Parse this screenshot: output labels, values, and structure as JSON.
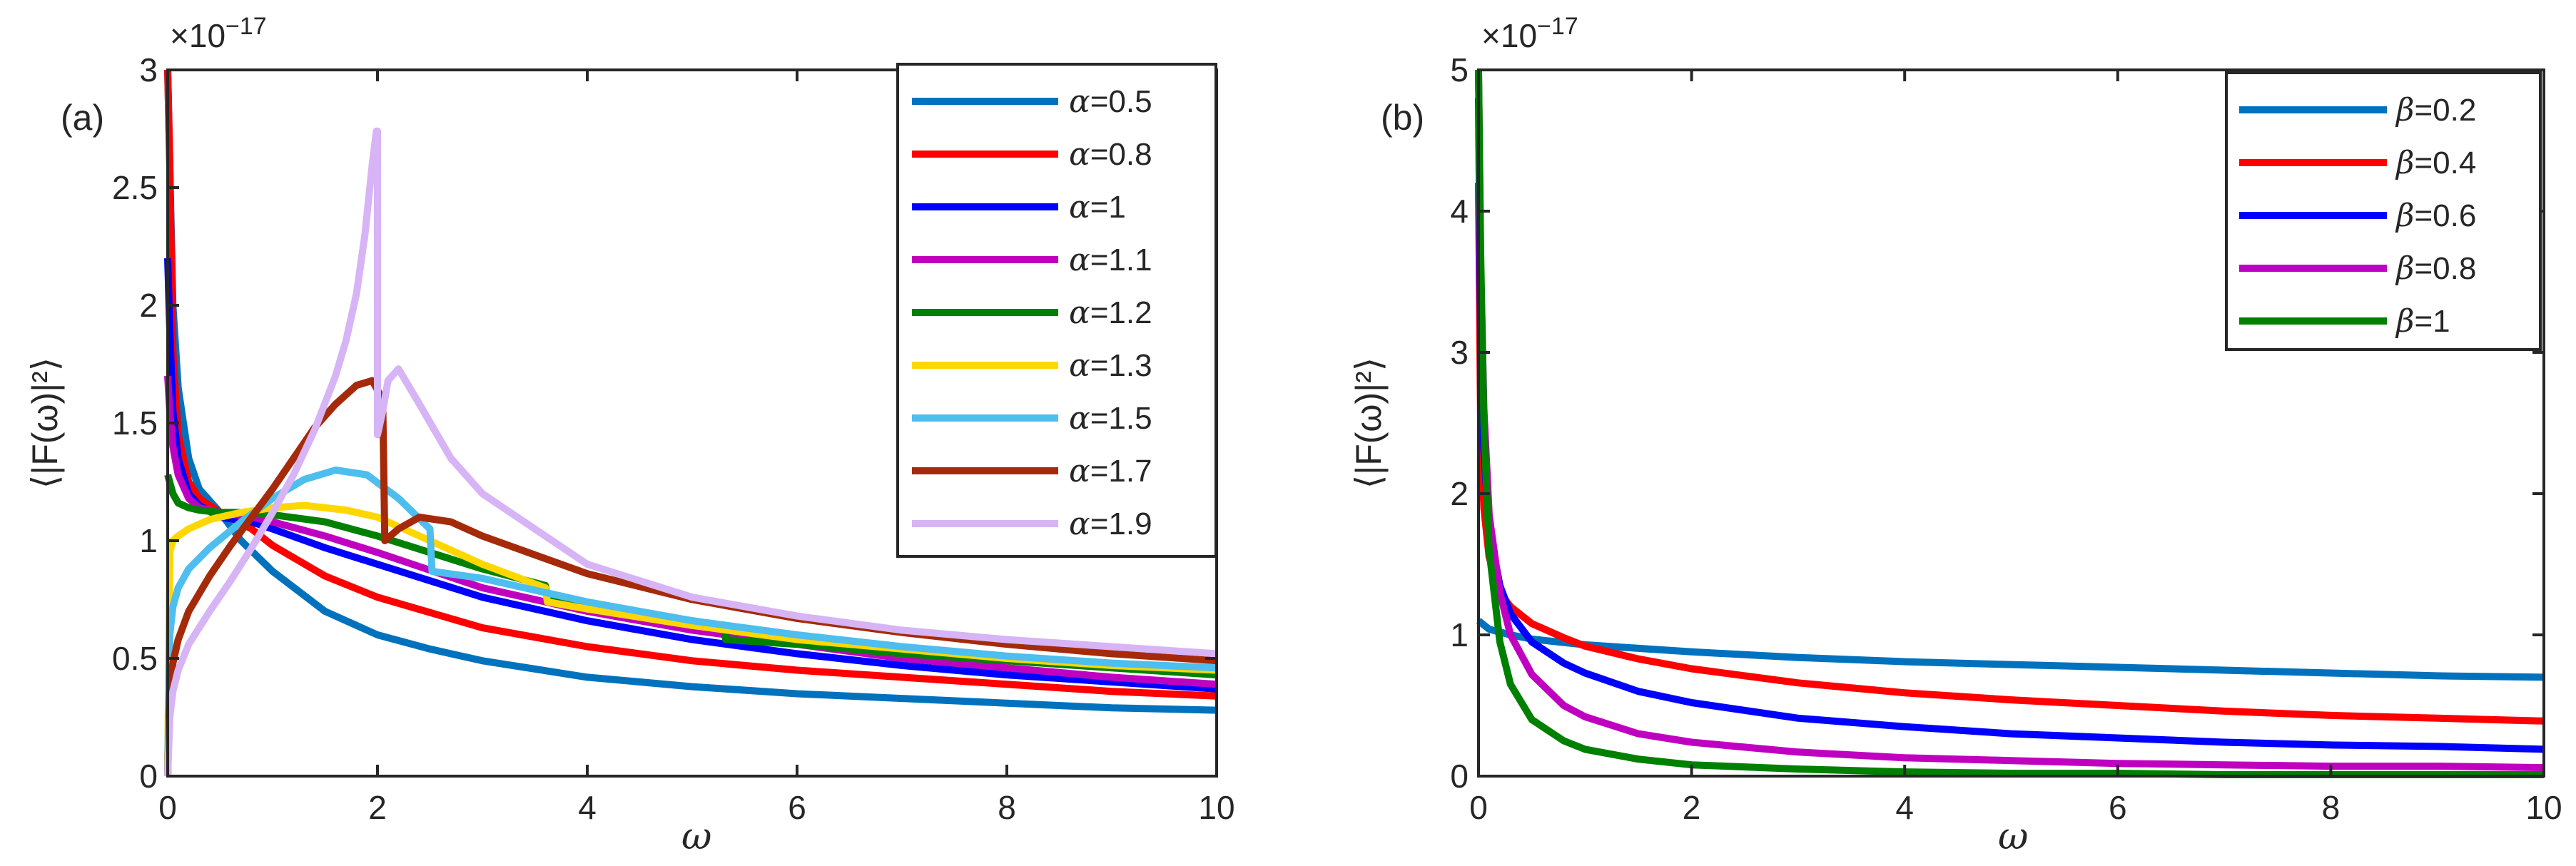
{
  "chart_data": [
    {
      "type": "line",
      "panel_label": "(a)",
      "xlabel": "ω",
      "ylabel": "⟨|F(ω)|²⟩",
      "y_multiplier": "×10",
      "y_multiplier_exponent": "−17",
      "xlim": [
        0,
        10
      ],
      "ylim": [
        0,
        3
      ],
      "x_ticks": [
        0,
        2,
        4,
        6,
        8,
        10
      ],
      "y_ticks": [
        0,
        0.5,
        1,
        1.5,
        2,
        2.5,
        3
      ],
      "legend_position": "top-right",
      "series": [
        {
          "symbol": "α",
          "label": "=0.5",
          "color": "#0072BD",
          "x": [
            0.0,
            0.05,
            0.1,
            0.2,
            0.3,
            0.5,
            0.7,
            1.0,
            1.5,
            2.0,
            2.5,
            3.0,
            4.0,
            5.0,
            6.0,
            7.0,
            8.0,
            9.0,
            10.0
          ],
          "y": [
            3.0,
            2.0,
            1.65,
            1.35,
            1.22,
            1.12,
            1.0,
            0.87,
            0.7,
            0.6,
            0.54,
            0.49,
            0.42,
            0.38,
            0.35,
            0.33,
            0.31,
            0.29,
            0.28
          ]
        },
        {
          "symbol": "α",
          "label": "=0.8",
          "color": "#FF0000",
          "x": [
            0.0,
            0.02,
            0.05,
            0.1,
            0.2,
            0.3,
            0.5,
            0.8,
            1.0,
            1.5,
            2.0,
            3.0,
            4.0,
            5.0,
            6.0,
            7.0,
            8.0,
            9.0,
            10.0
          ],
          "y": [
            3.0,
            2.6,
            1.8,
            1.45,
            1.25,
            1.18,
            1.12,
            1.05,
            0.98,
            0.85,
            0.76,
            0.63,
            0.55,
            0.49,
            0.45,
            0.42,
            0.39,
            0.36,
            0.34
          ]
        },
        {
          "symbol": "α",
          "label": "=1",
          "color": "#0000FF",
          "x": [
            0.0,
            0.02,
            0.05,
            0.1,
            0.2,
            0.3,
            0.5,
            0.8,
            1.0,
            1.5,
            2.0,
            3.0,
            4.0,
            5.0,
            6.0,
            7.0,
            8.0,
            9.0,
            10.0
          ],
          "y": [
            2.2,
            1.9,
            1.55,
            1.35,
            1.2,
            1.15,
            1.1,
            1.08,
            1.05,
            0.97,
            0.9,
            0.76,
            0.66,
            0.58,
            0.52,
            0.47,
            0.43,
            0.4,
            0.37
          ]
        },
        {
          "symbol": "α",
          "label": "=1.1",
          "color": "#C000C0",
          "x": [
            0.0,
            0.02,
            0.05,
            0.1,
            0.2,
            0.3,
            0.5,
            0.8,
            1.0,
            1.5,
            2.0,
            3.0,
            4.0,
            5.0,
            6.0,
            7.0,
            8.0,
            9.0,
            10.0
          ],
          "y": [
            1.7,
            1.55,
            1.4,
            1.28,
            1.18,
            1.14,
            1.12,
            1.1,
            1.08,
            1.02,
            0.95,
            0.8,
            0.7,
            0.62,
            0.56,
            0.5,
            0.46,
            0.42,
            0.39
          ]
        },
        {
          "symbol": "α",
          "label": "=1.2",
          "color": "#008000",
          "x": [
            0.0,
            0.05,
            0.1,
            0.2,
            0.3,
            0.5,
            0.8,
            1.0,
            1.5,
            2.0,
            3.0,
            3.6,
            3.62,
            4.0,
            5.0,
            5.3,
            5.32,
            6.0,
            7.0,
            8.0,
            9.0,
            10.0
          ],
          "y": [
            1.28,
            1.2,
            1.16,
            1.14,
            1.13,
            1.12,
            1.12,
            1.11,
            1.08,
            1.02,
            0.88,
            0.81,
            0.76,
            0.73,
            0.66,
            0.64,
            0.58,
            0.56,
            0.52,
            0.49,
            0.46,
            0.43
          ]
        },
        {
          "symbol": "α",
          "label": "=1.3",
          "color": "#FFD700",
          "x": [
            0.0,
            0.02,
            0.05,
            0.1,
            0.2,
            0.4,
            0.7,
            1.0,
            1.3,
            1.7,
            2.0,
            2.5,
            3.0,
            3.6,
            3.62,
            4.0,
            5.0,
            6.0,
            7.0,
            8.0,
            9.0,
            10.0
          ],
          "y": [
            0.0,
            0.95,
            1.0,
            1.02,
            1.05,
            1.09,
            1.12,
            1.14,
            1.15,
            1.13,
            1.1,
            1.0,
            0.9,
            0.8,
            0.74,
            0.71,
            0.64,
            0.58,
            0.54,
            0.5,
            0.47,
            0.45
          ]
        },
        {
          "symbol": "α",
          "label": "=1.5",
          "color": "#4DBEEE",
          "x": [
            0.0,
            0.02,
            0.05,
            0.1,
            0.2,
            0.4,
            0.7,
            1.0,
            1.3,
            1.6,
            1.9,
            2.2,
            2.5,
            2.52,
            3.0,
            4.0,
            5.0,
            6.0,
            7.0,
            8.0,
            9.0,
            10.0
          ],
          "y": [
            0.0,
            0.6,
            0.72,
            0.8,
            0.88,
            0.97,
            1.08,
            1.18,
            1.26,
            1.3,
            1.28,
            1.18,
            1.05,
            0.87,
            0.84,
            0.74,
            0.66,
            0.6,
            0.55,
            0.51,
            0.48,
            0.46
          ]
        },
        {
          "symbol": "α",
          "label": "=1.7",
          "color": "#A52A0A",
          "x": [
            0.0,
            0.02,
            0.05,
            0.1,
            0.2,
            0.4,
            0.6,
            0.8,
            1.0,
            1.2,
            1.4,
            1.6,
            1.8,
            1.95,
            2.05,
            2.07,
            2.2,
            2.4,
            2.7,
            3.0,
            4.0,
            5.0,
            6.0,
            7.0,
            8.0,
            9.0,
            10.0
          ],
          "y": [
            0.0,
            0.35,
            0.48,
            0.58,
            0.7,
            0.85,
            0.98,
            1.1,
            1.22,
            1.35,
            1.48,
            1.58,
            1.66,
            1.68,
            1.6,
            1.0,
            1.05,
            1.1,
            1.08,
            1.02,
            0.86,
            0.75,
            0.67,
            0.61,
            0.56,
            0.52,
            0.49
          ]
        },
        {
          "symbol": "α",
          "label": "=1.9",
          "color": "#D7B4F5",
          "x": [
            0.0,
            0.02,
            0.05,
            0.1,
            0.2,
            0.4,
            0.6,
            0.8,
            1.0,
            1.2,
            1.4,
            1.6,
            1.7,
            1.8,
            1.88,
            1.95,
            1.99,
            2.0,
            2.0,
            2.05,
            2.1,
            2.2,
            2.4,
            2.7,
            3.0,
            4.0,
            5.0,
            6.0,
            7.0,
            8.0,
            9.0,
            10.0
          ],
          "y": [
            0.0,
            0.25,
            0.36,
            0.45,
            0.56,
            0.7,
            0.83,
            0.97,
            1.12,
            1.28,
            1.47,
            1.7,
            1.85,
            2.05,
            2.3,
            2.6,
            2.74,
            2.74,
            1.45,
            1.55,
            1.68,
            1.73,
            1.58,
            1.35,
            1.2,
            0.9,
            0.76,
            0.68,
            0.62,
            0.58,
            0.55,
            0.52
          ]
        }
      ]
    },
    {
      "type": "line",
      "panel_label": "(b)",
      "xlabel": "ω",
      "ylabel": "⟨|F(ω)|²⟩",
      "y_multiplier": "×10",
      "y_multiplier_exponent": "−17",
      "xlim": [
        0,
        10
      ],
      "ylim": [
        0,
        5
      ],
      "x_ticks": [
        0,
        2,
        4,
        6,
        8,
        10
      ],
      "y_ticks": [
        0,
        1,
        2,
        3,
        4,
        5
      ],
      "legend_position": "top-right",
      "series": [
        {
          "symbol": "β",
          "label": "=0.2",
          "color": "#0072BD",
          "x": [
            0.0,
            0.1,
            0.3,
            0.5,
            1.0,
            2.0,
            3.0,
            4.0,
            5.0,
            6.0,
            7.0,
            8.0,
            9.0,
            10.0
          ],
          "y": [
            1.1,
            1.04,
            1.0,
            0.97,
            0.93,
            0.88,
            0.84,
            0.81,
            0.79,
            0.77,
            0.75,
            0.73,
            0.71,
            0.7
          ]
        },
        {
          "symbol": "β",
          "label": "=0.4",
          "color": "#FF0000",
          "x": [
            0.0,
            0.02,
            0.05,
            0.1,
            0.2,
            0.3,
            0.5,
            0.8,
            1.0,
            1.5,
            2.0,
            3.0,
            4.0,
            5.0,
            6.0,
            7.0,
            8.0,
            9.0,
            10.0
          ],
          "y": [
            4.2,
            2.5,
            1.9,
            1.55,
            1.3,
            1.2,
            1.08,
            0.98,
            0.92,
            0.83,
            0.76,
            0.66,
            0.59,
            0.54,
            0.5,
            0.46,
            0.43,
            0.41,
            0.39
          ]
        },
        {
          "symbol": "β",
          "label": "=0.6",
          "color": "#0000FF",
          "x": [
            0.0,
            0.02,
            0.05,
            0.1,
            0.2,
            0.3,
            0.5,
            0.8,
            1.0,
            1.5,
            2.0,
            3.0,
            4.0,
            5.0,
            6.0,
            7.0,
            8.0,
            9.0,
            10.0
          ],
          "y": [
            4.8,
            3.1,
            2.3,
            1.75,
            1.35,
            1.15,
            0.95,
            0.8,
            0.73,
            0.6,
            0.52,
            0.41,
            0.35,
            0.3,
            0.27,
            0.24,
            0.22,
            0.21,
            0.19
          ]
        },
        {
          "symbol": "β",
          "label": "=0.8",
          "color": "#C000C0",
          "x": [
            0.0,
            0.02,
            0.05,
            0.1,
            0.2,
            0.3,
            0.5,
            0.8,
            1.0,
            1.5,
            2.0,
            3.0,
            4.0,
            5.0,
            6.0,
            7.0,
            8.0,
            9.0,
            10.0
          ],
          "y": [
            5.0,
            3.6,
            2.6,
            1.85,
            1.3,
            1.0,
            0.72,
            0.5,
            0.42,
            0.3,
            0.24,
            0.17,
            0.13,
            0.11,
            0.09,
            0.08,
            0.07,
            0.07,
            0.06
          ]
        },
        {
          "symbol": "β",
          "label": "=1",
          "color": "#008000",
          "x": [
            0.0,
            0.02,
            0.05,
            0.1,
            0.2,
            0.3,
            0.5,
            0.8,
            1.0,
            1.5,
            2.0,
            3.0,
            4.0,
            5.0,
            6.0,
            7.0,
            8.0,
            9.0,
            10.0
          ],
          "y": [
            5.0,
            3.7,
            2.5,
            1.6,
            0.95,
            0.65,
            0.4,
            0.25,
            0.19,
            0.12,
            0.08,
            0.05,
            0.03,
            0.02,
            0.02,
            0.01,
            0.01,
            0.01,
            0.01
          ]
        }
      ]
    }
  ]
}
